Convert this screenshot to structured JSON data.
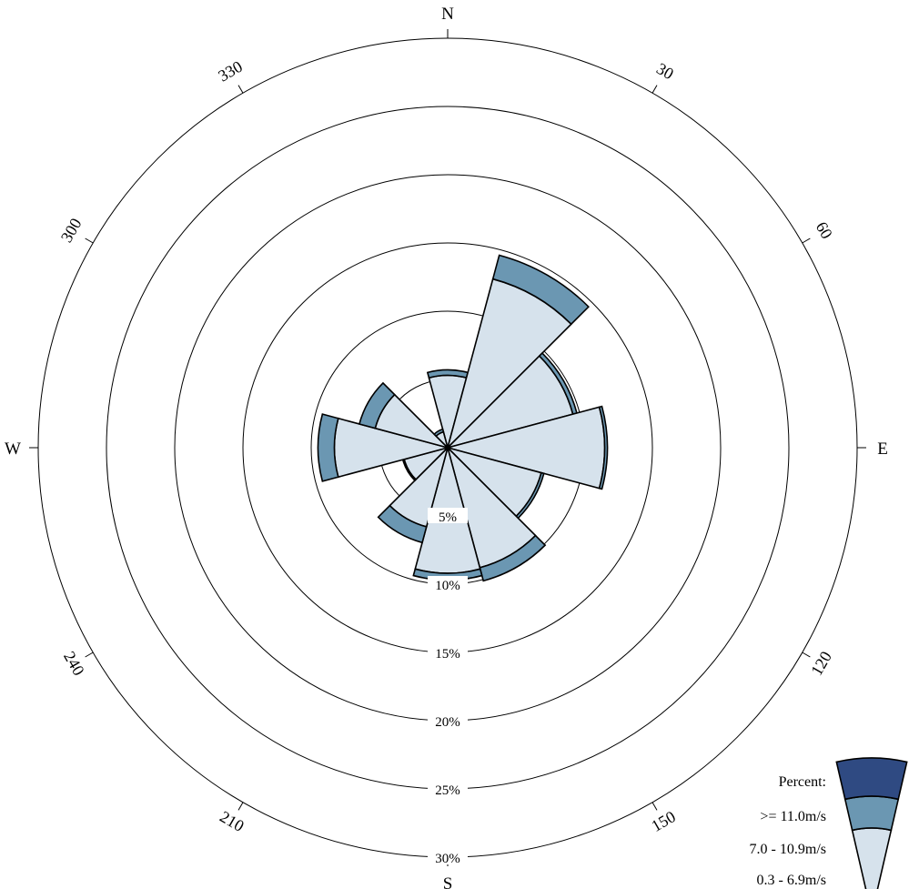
{
  "chart_data": {
    "type": "windrose",
    "direction_bins_deg": [
      0,
      30,
      60,
      90,
      120,
      150,
      180,
      210,
      240,
      270,
      300,
      330
    ],
    "sector_width_deg": 30,
    "radial_unit": "Percent",
    "radial_ticks": [
      5,
      10,
      15,
      20,
      25,
      30
    ],
    "radial_tick_labels": [
      "5%",
      "10%",
      "15%",
      "20%",
      "25%",
      "30%"
    ],
    "rmax": 30,
    "compass_labels": [
      {
        "angle": 0,
        "text": "N"
      },
      {
        "angle": 90,
        "text": "E"
      },
      {
        "angle": 180,
        "text": "S"
      },
      {
        "angle": 270,
        "text": "W"
      }
    ],
    "angle_labels": [
      {
        "angle": 30,
        "text": "30"
      },
      {
        "angle": 60,
        "text": "60"
      },
      {
        "angle": 120,
        "text": "120"
      },
      {
        "angle": 150,
        "text": "150"
      },
      {
        "angle": 210,
        "text": "210"
      },
      {
        "angle": 240,
        "text": "240"
      },
      {
        "angle": 300,
        "text": "300"
      },
      {
        "angle": 330,
        "text": "330"
      }
    ],
    "series": [
      {
        "name": "0.3 - 6.9m/s",
        "color": "#d6e2ec",
        "values": [
          5.3,
          12.8,
          9.5,
          11.5,
          7.1,
          9.1,
          9.2,
          6.0,
          3.3,
          8.3,
          5.5,
          1.2
        ]
      },
      {
        "name": "7.0 - 10.9m/s",
        "color": "#6b97b2",
        "values": [
          0.4,
          1.8,
          0.3,
          0.2,
          0.2,
          1.0,
          0.5,
          1.2,
          0.1,
          1.2,
          1.2,
          0.2
        ]
      },
      {
        "name": ">= 11.0m/s",
        "color": "#2f4a82",
        "values": [
          0.0,
          0.0,
          0.0,
          0.0,
          0.0,
          0.0,
          0.0,
          0.0,
          0.0,
          0.0,
          0.0,
          0.0
        ]
      }
    ],
    "legend": {
      "title": "Percent:",
      "placement": "bottom-right",
      "items": [
        ">= 11.0m/s",
        "7.0 - 10.9m/s",
        "0.3 - 6.9m/s"
      ]
    }
  },
  "colors": {
    "low": "#d6e2ec",
    "mid": "#6b97b2",
    "high": "#2f4a82"
  }
}
